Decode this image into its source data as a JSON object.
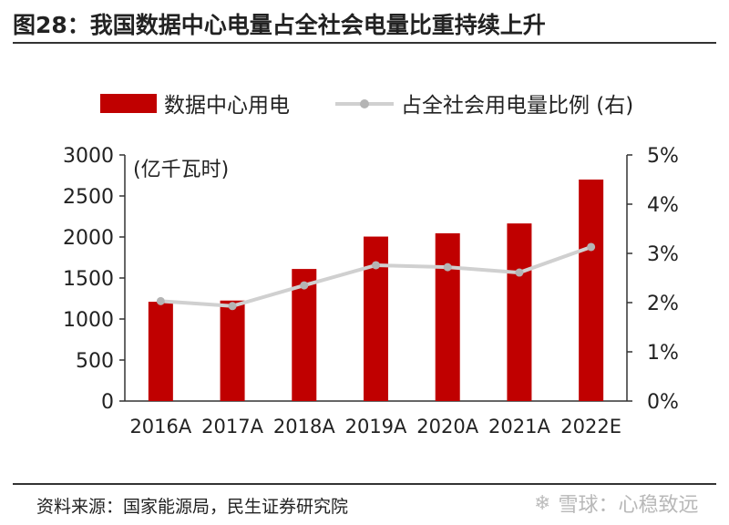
{
  "title": "图28：我国数据中心电量占全社会电量比重持续上升",
  "unit_label": "(亿千瓦时)",
  "source": "资料来源：国家能源局，民生证券研究院",
  "watermark": {
    "icon": "snowball-icon",
    "text": "雪球：心稳致远"
  },
  "colors": {
    "bar": "#c00000",
    "line": "#d0d0d0",
    "marker": "#b4b4b4"
  },
  "chart_data": {
    "type": "bar",
    "categories": [
      "2016A",
      "2017A",
      "2018A",
      "2019A",
      "2020A",
      "2021A",
      "2022E"
    ],
    "series": [
      {
        "name": "数据中心用电",
        "type": "bar",
        "axis": "left",
        "values": [
          1210,
          1225,
          1610,
          2005,
          2045,
          2165,
          2700
        ]
      },
      {
        "name": "占全社会用电量比例 (右)",
        "type": "line",
        "axis": "right",
        "values": [
          2.03,
          1.93,
          2.35,
          2.76,
          2.72,
          2.61,
          3.13
        ]
      }
    ],
    "y_left": {
      "min": 0,
      "max": 3000,
      "ticks": [
        "0",
        "500",
        "1000",
        "1500",
        "2000",
        "2500",
        "3000"
      ]
    },
    "y_right": {
      "min": 0,
      "max": 5,
      "ticks": [
        "0%",
        "1%",
        "2%",
        "3%",
        "4%",
        "5%"
      ]
    },
    "legend_position": "top"
  }
}
